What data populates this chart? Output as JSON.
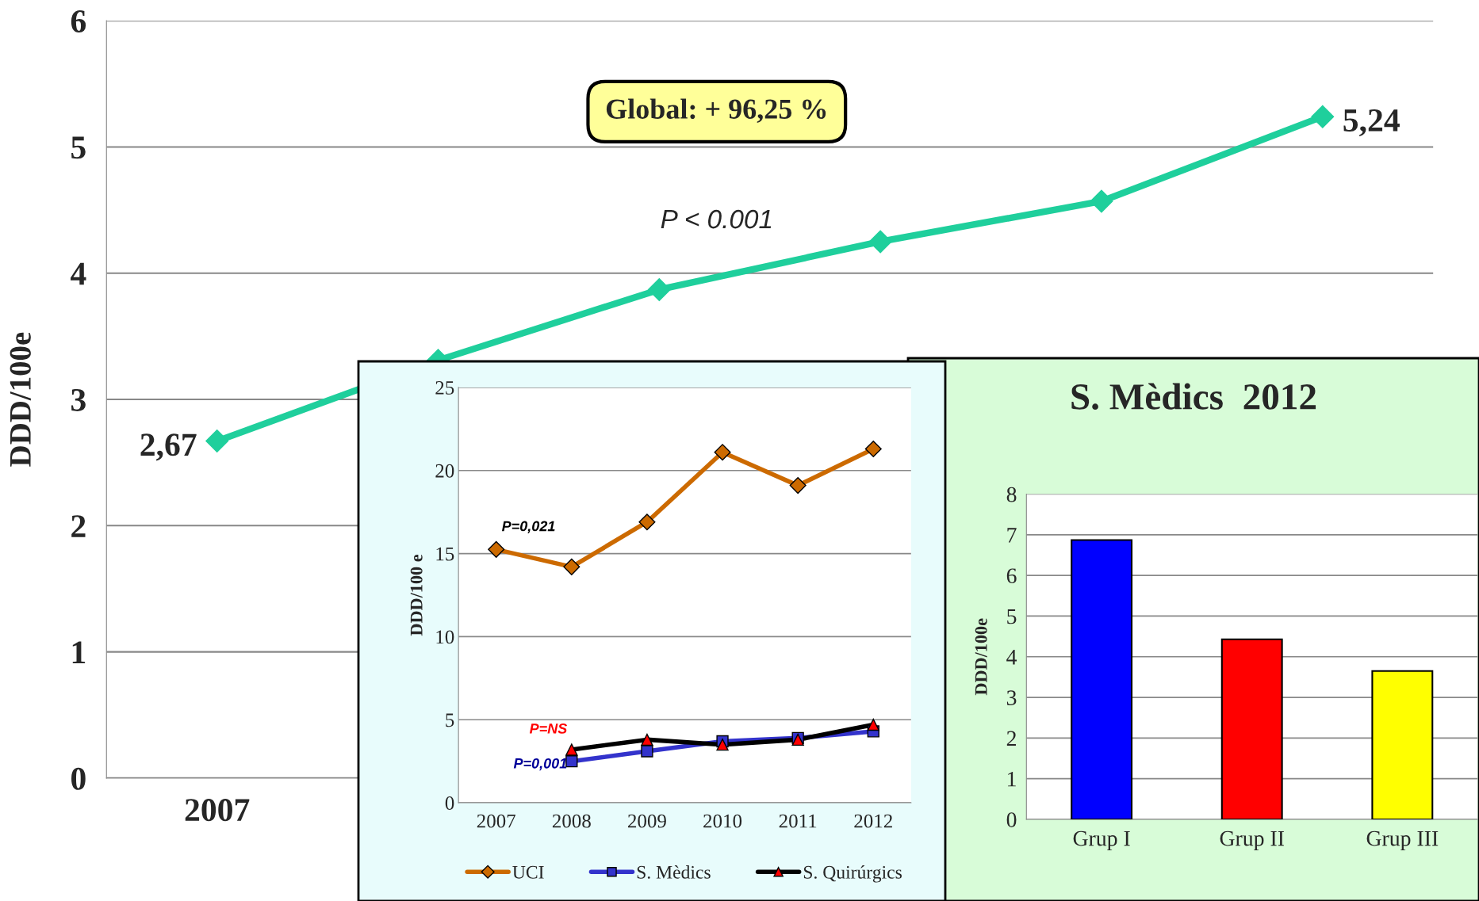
{
  "chart_data": [
    {
      "type": "line",
      "ylabel": "DDD/100e",
      "categories": [
        "2007",
        null,
        null,
        null,
        null,
        null
      ],
      "series": [
        {
          "color": "#1fcf9c",
          "values": [
            2.67,
            3.31,
            3.87,
            4.25,
            4.57,
            5.24
          ],
          "value_labels": [
            "2,67",
            null,
            null,
            null,
            null,
            "5,24"
          ]
        }
      ],
      "ylim": [
        0,
        6
      ],
      "yticks": [
        0,
        1,
        2,
        3,
        4,
        5,
        6
      ],
      "grid": "y",
      "marker": "diamond",
      "line_style": "solid",
      "annotations": [
        "Global: + 96,25 %",
        "P < 0.001"
      ]
    },
    {
      "type": "line",
      "ylabel": "DDD/100 e",
      "categories": [
        "2007",
        "2008",
        "2009",
        "2010",
        "2011",
        "2012"
      ],
      "series": [
        {
          "name": "UCI",
          "color": "#cc6a00",
          "marker": "diamond",
          "values": [
            15.25,
            14.2,
            16.9,
            21.1,
            19.1,
            21.3
          ]
        },
        {
          "name": "S. Mèdics",
          "color": "#3333cc",
          "marker": "square",
          "values": [
            null,
            2.5,
            3.1,
            3.7,
            3.9,
            4.3
          ]
        },
        {
          "name": "S. Quirúrgics",
          "color": "#000000",
          "marker": "triangle",
          "colors": [
            null,
            "#ff0000",
            "#ff0000",
            "#ff0000",
            "#ff0000",
            "#ff0000"
          ],
          "values": [
            null,
            3.2,
            3.8,
            3.5,
            3.8,
            4.7
          ]
        }
      ],
      "ylim": [
        0,
        25
      ],
      "yticks": [
        0,
        5,
        10,
        15,
        20,
        25
      ],
      "grid": "y",
      "legend": "bottom",
      "line_style": "solid",
      "annotations": [
        {
          "text": "P=0,021",
          "x": "2007",
          "y": 15.25
        },
        {
          "text": "P=NS",
          "x": "2008",
          "y": 3.2
        },
        {
          "text": "P=0,001",
          "x": "2008",
          "y": 2.5
        }
      ]
    },
    {
      "type": "bar",
      "title": "S. Mèdics  2012",
      "ylabel": "DDD/100e",
      "categories": [
        "Grup I",
        "Grup II",
        "Grup III"
      ],
      "values": [
        6.87,
        4.43,
        3.65
      ],
      "colors": [
        "#0000ff",
        "#ff0000",
        "#ffff00"
      ],
      "ylim": [
        0,
        8
      ],
      "yticks": [
        0,
        1,
        2,
        3,
        4,
        5,
        6,
        7,
        8
      ],
      "grid": "y"
    }
  ]
}
